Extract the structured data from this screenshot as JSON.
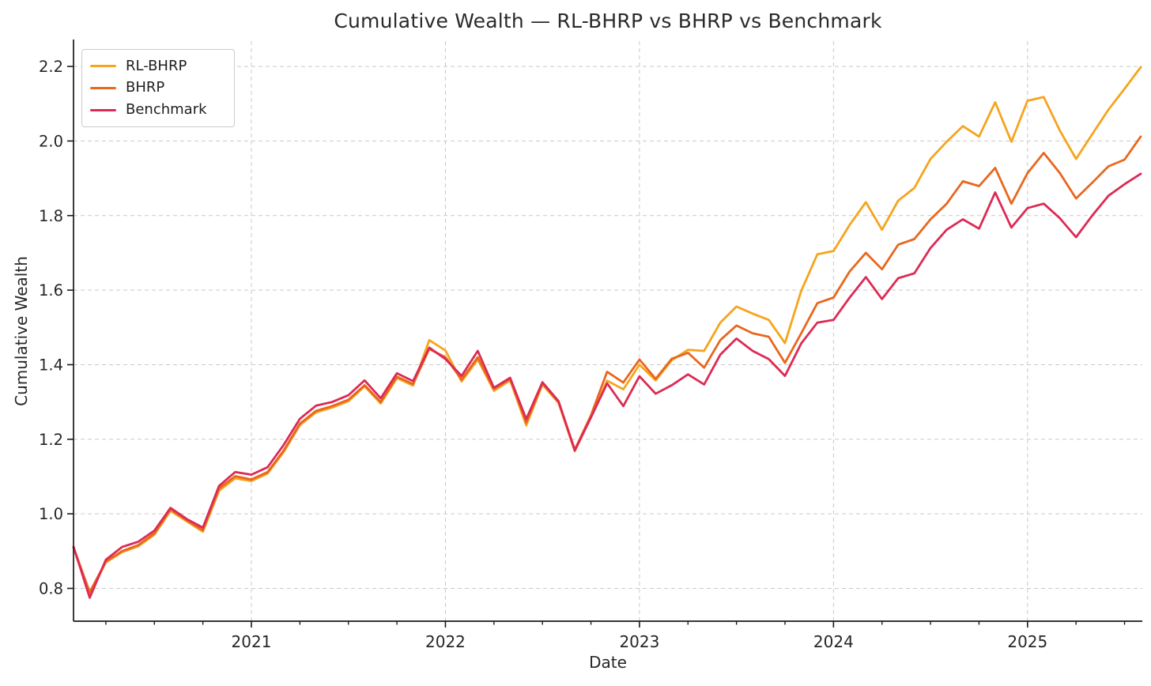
{
  "page": {
    "background": "#ffffff"
  },
  "chart_data": {
    "type": "line",
    "title": "Cumulative Wealth — RL-BHRP vs BHRP vs Benchmark",
    "xlabel": "Date",
    "ylabel": "Cumulative Wealth",
    "grid": true,
    "legend_position": "upper-left",
    "ylim": [
      0.712,
      2.268
    ],
    "yticks": [
      0.8,
      1.0,
      1.2,
      1.4,
      1.6,
      1.8,
      2.0,
      2.2
    ],
    "xticks": [
      {
        "label": "2021",
        "index": 11
      },
      {
        "label": "2022",
        "index": 23
      },
      {
        "label": "2023",
        "index": 35
      },
      {
        "label": "2024",
        "index": 47
      },
      {
        "label": "2025",
        "index": 59
      }
    ],
    "minor_xtick_every_months": 3,
    "x_months": [
      "2020-02",
      "2020-03",
      "2020-04",
      "2020-05",
      "2020-06",
      "2020-07",
      "2020-08",
      "2020-09",
      "2020-10",
      "2020-11",
      "2020-12",
      "2021-01",
      "2021-02",
      "2021-03",
      "2021-04",
      "2021-05",
      "2021-06",
      "2021-07",
      "2021-08",
      "2021-09",
      "2021-10",
      "2021-11",
      "2021-12",
      "2022-01",
      "2022-02",
      "2022-03",
      "2022-04",
      "2022-05",
      "2022-06",
      "2022-07",
      "2022-08",
      "2022-09",
      "2022-10",
      "2022-11",
      "2022-12",
      "2023-01",
      "2023-02",
      "2023-03",
      "2023-04",
      "2023-05",
      "2023-06",
      "2023-07",
      "2023-08",
      "2023-09",
      "2023-10",
      "2023-11",
      "2023-12",
      "2024-01",
      "2024-02",
      "2024-03",
      "2024-04",
      "2024-05",
      "2024-06",
      "2024-07",
      "2024-08",
      "2024-09",
      "2024-10",
      "2024-11",
      "2024-12",
      "2025-01",
      "2025-02",
      "2025-03",
      "2025-04",
      "2025-05",
      "2025-06",
      "2025-07",
      "2025-08"
    ],
    "series": [
      {
        "name": "RL-BHRP",
        "color": "#F6A41D",
        "values": [
          0.908,
          0.785,
          0.87,
          0.897,
          0.913,
          0.944,
          1.008,
          0.98,
          0.952,
          1.062,
          1.095,
          1.088,
          1.108,
          1.166,
          1.238,
          1.272,
          1.285,
          1.302,
          1.342,
          1.296,
          1.364,
          1.344,
          1.466,
          1.438,
          1.355,
          1.414,
          1.33,
          1.358,
          1.237,
          1.347,
          1.297,
          1.168,
          1.26,
          1.357,
          1.334,
          1.4,
          1.358,
          1.412,
          1.44,
          1.437,
          1.513,
          1.556,
          1.537,
          1.52,
          1.458,
          1.598,
          1.696,
          1.705,
          1.775,
          1.836,
          1.762,
          1.84,
          1.874,
          1.952,
          1.998,
          2.04,
          2.012,
          2.104,
          1.998,
          2.108,
          2.118,
          2.028,
          1.952,
          2.018,
          2.084,
          2.14,
          2.198
        ]
      },
      {
        "name": "BHRP",
        "color": "#E8671D",
        "values": [
          0.91,
          0.79,
          0.872,
          0.9,
          0.916,
          0.948,
          1.012,
          0.983,
          0.956,
          1.068,
          1.101,
          1.092,
          1.112,
          1.17,
          1.242,
          1.276,
          1.289,
          1.306,
          1.345,
          1.3,
          1.368,
          1.348,
          1.442,
          1.42,
          1.36,
          1.42,
          1.335,
          1.362,
          1.245,
          1.35,
          1.3,
          1.172,
          1.264,
          1.381,
          1.352,
          1.414,
          1.362,
          1.416,
          1.432,
          1.392,
          1.466,
          1.505,
          1.484,
          1.475,
          1.405,
          1.484,
          1.565,
          1.58,
          1.65,
          1.7,
          1.656,
          1.722,
          1.737,
          1.79,
          1.832,
          1.892,
          1.879,
          1.928,
          1.832,
          1.914,
          1.968,
          1.914,
          1.846,
          1.888,
          1.932,
          1.95,
          2.012
        ]
      },
      {
        "name": "Benchmark",
        "color": "#DC2A55",
        "values": [
          0.912,
          0.775,
          0.877,
          0.911,
          0.925,
          0.955,
          1.016,
          0.986,
          0.963,
          1.075,
          1.112,
          1.105,
          1.125,
          1.185,
          1.255,
          1.29,
          1.3,
          1.318,
          1.358,
          1.31,
          1.377,
          1.356,
          1.446,
          1.415,
          1.37,
          1.437,
          1.338,
          1.365,
          1.254,
          1.353,
          1.302,
          1.17,
          1.258,
          1.35,
          1.289,
          1.369,
          1.322,
          1.345,
          1.374,
          1.347,
          1.427,
          1.47,
          1.437,
          1.415,
          1.37,
          1.457,
          1.513,
          1.52,
          1.58,
          1.635,
          1.576,
          1.632,
          1.645,
          1.713,
          1.762,
          1.79,
          1.765,
          1.862,
          1.768,
          1.82,
          1.832,
          1.793,
          1.742,
          1.8,
          1.853,
          1.884,
          1.912
        ]
      }
    ],
    "style": {
      "grid_color": "#c9c9c9",
      "spine_color": "#1a1a1a",
      "tick_label_color": "#262626",
      "line_width": 2.8
    }
  }
}
